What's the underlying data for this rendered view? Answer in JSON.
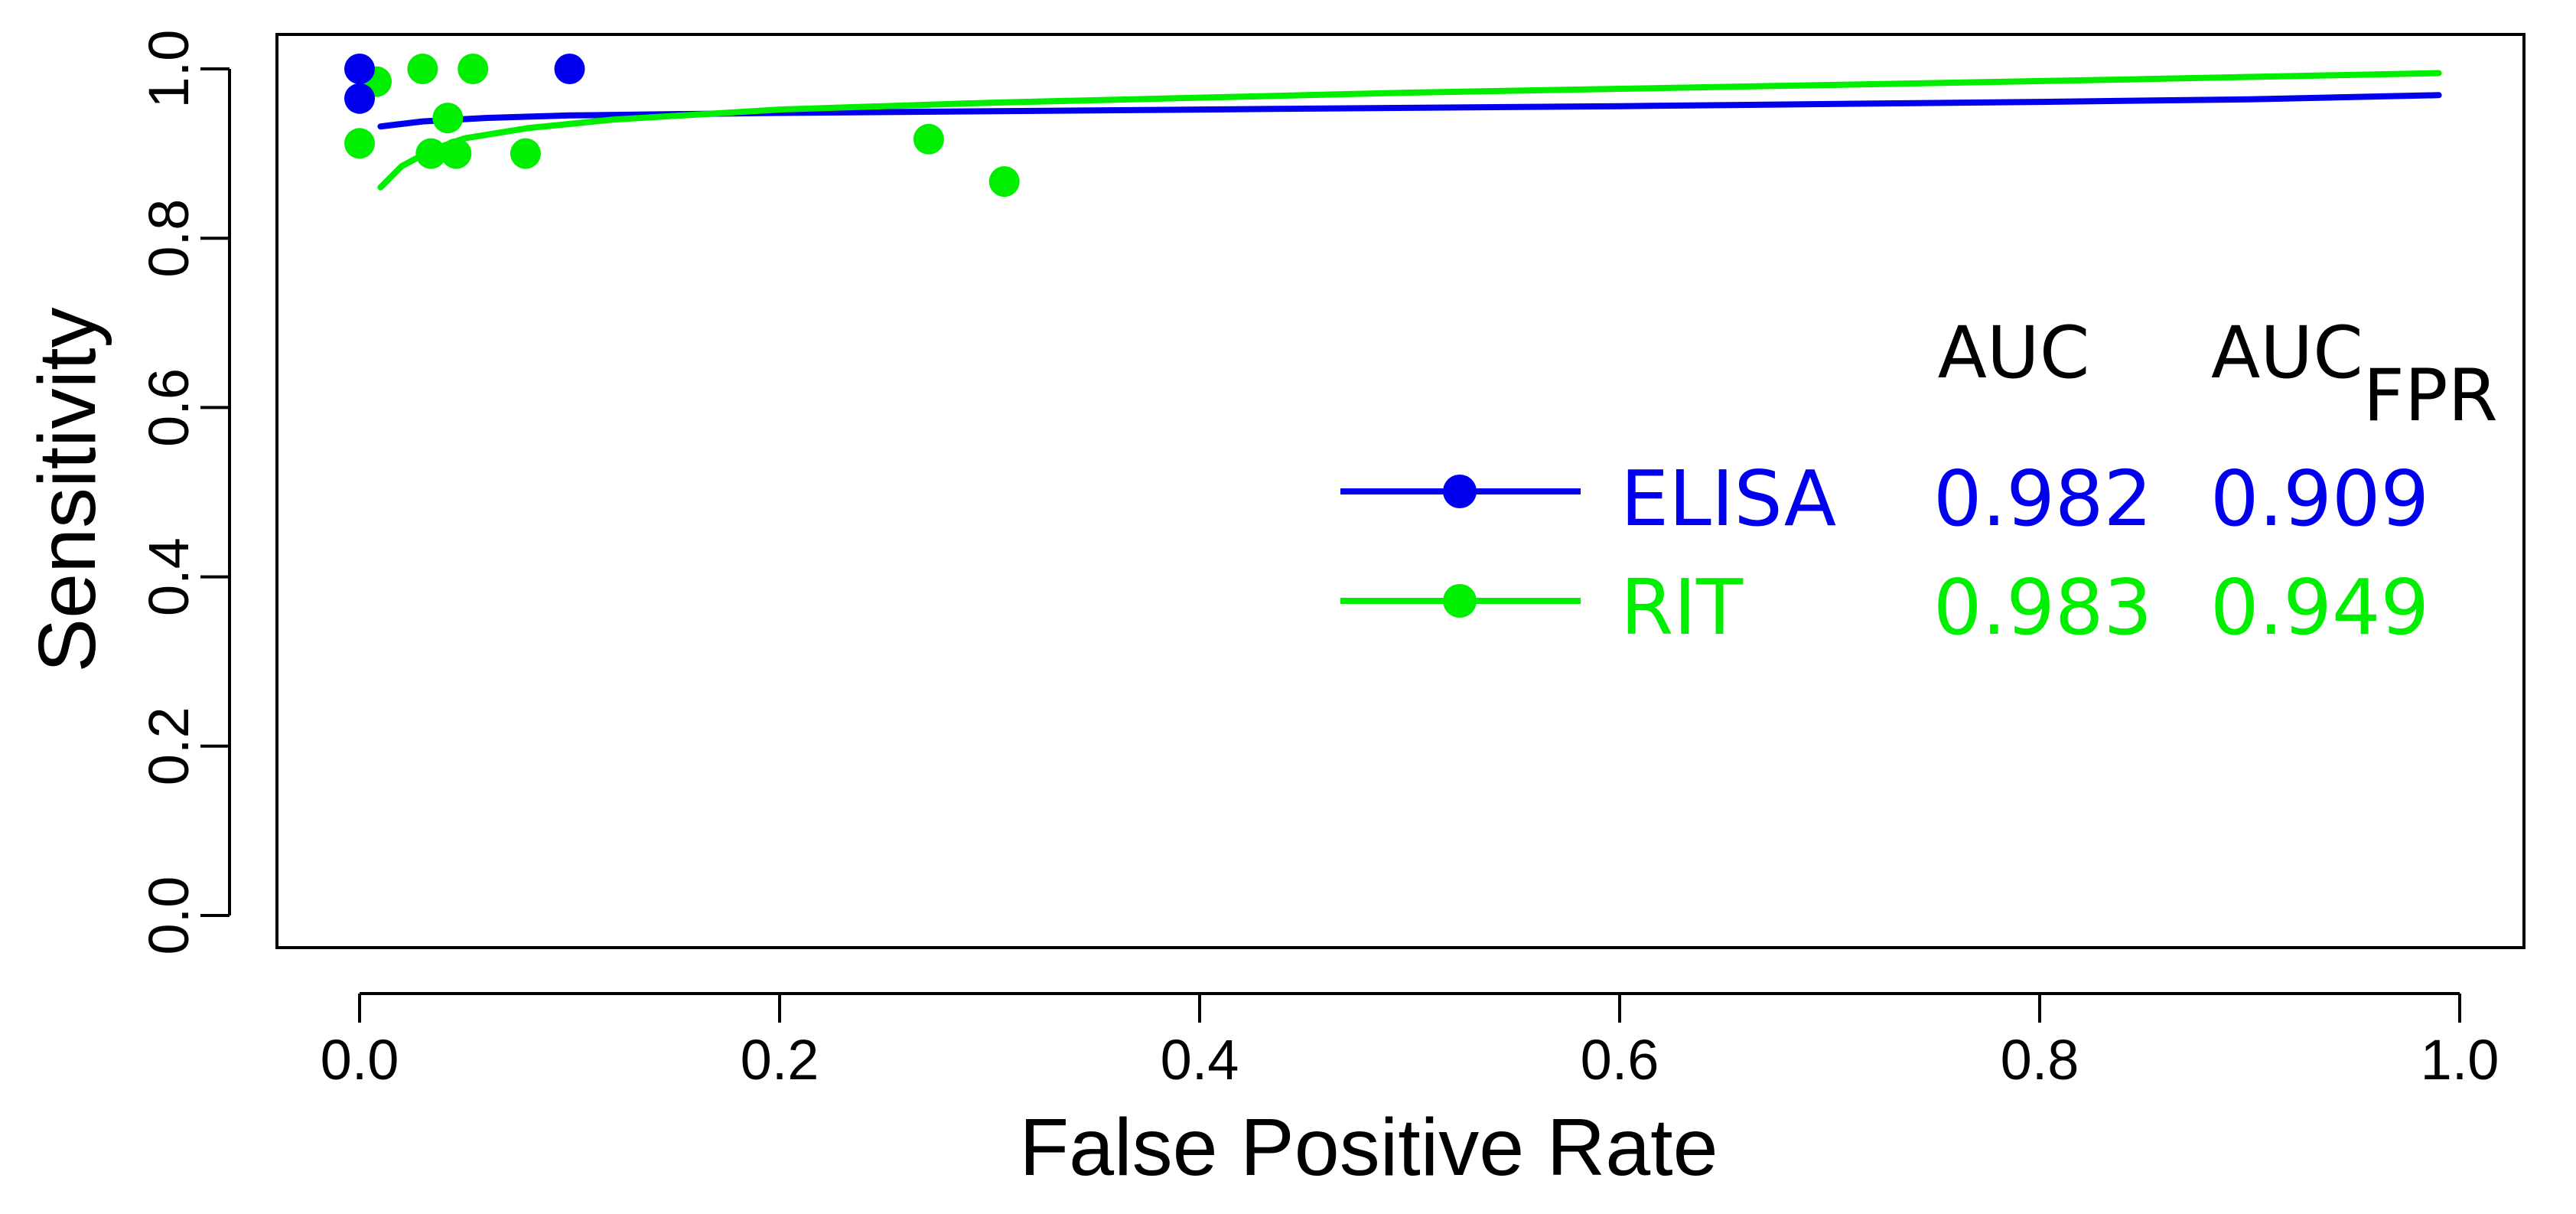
{
  "chart_data": {
    "type": "scatter",
    "title": "",
    "xlabel": "False Positive Rate",
    "ylabel": "Sensitivity",
    "xlim": [
      0.0,
      1.0
    ],
    "ylim": [
      0.0,
      1.0
    ],
    "x_ticks": [
      "0.0",
      "0.2",
      "0.4",
      "0.6",
      "0.8",
      "1.0"
    ],
    "y_ticks": [
      "0.0",
      "0.2",
      "0.4",
      "0.6",
      "0.8",
      "1.0"
    ],
    "grid": false,
    "series": [
      {
        "name": "ELISA",
        "color": "#0000ee",
        "auc": "0.982",
        "auc_fpr": "0.909",
        "points": [
          {
            "x": 0.0,
            "y": 1.0
          },
          {
            "x": 0.0,
            "y": 0.965
          },
          {
            "x": 0.1,
            "y": 1.0
          }
        ],
        "curve": [
          {
            "x": 0.01,
            "y": 0.932
          },
          {
            "x": 0.03,
            "y": 0.938
          },
          {
            "x": 0.06,
            "y": 0.942
          },
          {
            "x": 0.1,
            "y": 0.945
          },
          {
            "x": 0.2,
            "y": 0.948
          },
          {
            "x": 0.4,
            "y": 0.952
          },
          {
            "x": 0.6,
            "y": 0.956
          },
          {
            "x": 0.8,
            "y": 0.961
          },
          {
            "x": 0.9,
            "y": 0.964
          },
          {
            "x": 0.99,
            "y": 0.969
          }
        ]
      },
      {
        "name": "RIT",
        "color": "#00ee00",
        "auc": "0.983",
        "auc_fpr": "0.949",
        "points": [
          {
            "x": 0.008,
            "y": 0.985
          },
          {
            "x": 0.0,
            "y": 0.912
          },
          {
            "x": 0.03,
            "y": 1.0
          },
          {
            "x": 0.054,
            "y": 1.0
          },
          {
            "x": 0.042,
            "y": 0.942
          },
          {
            "x": 0.034,
            "y": 0.9
          },
          {
            "x": 0.046,
            "y": 0.9
          },
          {
            "x": 0.079,
            "y": 0.9
          },
          {
            "x": 0.271,
            "y": 0.917
          },
          {
            "x": 0.307,
            "y": 0.867
          }
        ],
        "curve": [
          {
            "x": 0.01,
            "y": 0.86
          },
          {
            "x": 0.02,
            "y": 0.885
          },
          {
            "x": 0.035,
            "y": 0.905
          },
          {
            "x": 0.05,
            "y": 0.918
          },
          {
            "x": 0.08,
            "y": 0.93
          },
          {
            "x": 0.12,
            "y": 0.94
          },
          {
            "x": 0.2,
            "y": 0.952
          },
          {
            "x": 0.3,
            "y": 0.96
          },
          {
            "x": 0.5,
            "y": 0.972
          },
          {
            "x": 0.7,
            "y": 0.981
          },
          {
            "x": 0.85,
            "y": 0.988
          },
          {
            "x": 0.99,
            "y": 0.995
          }
        ]
      }
    ],
    "legend": {
      "placement": "right",
      "header_auc": "AUC",
      "header_auc_fpr_main": "AUC",
      "header_auc_fpr_sub": "FPR"
    }
  }
}
